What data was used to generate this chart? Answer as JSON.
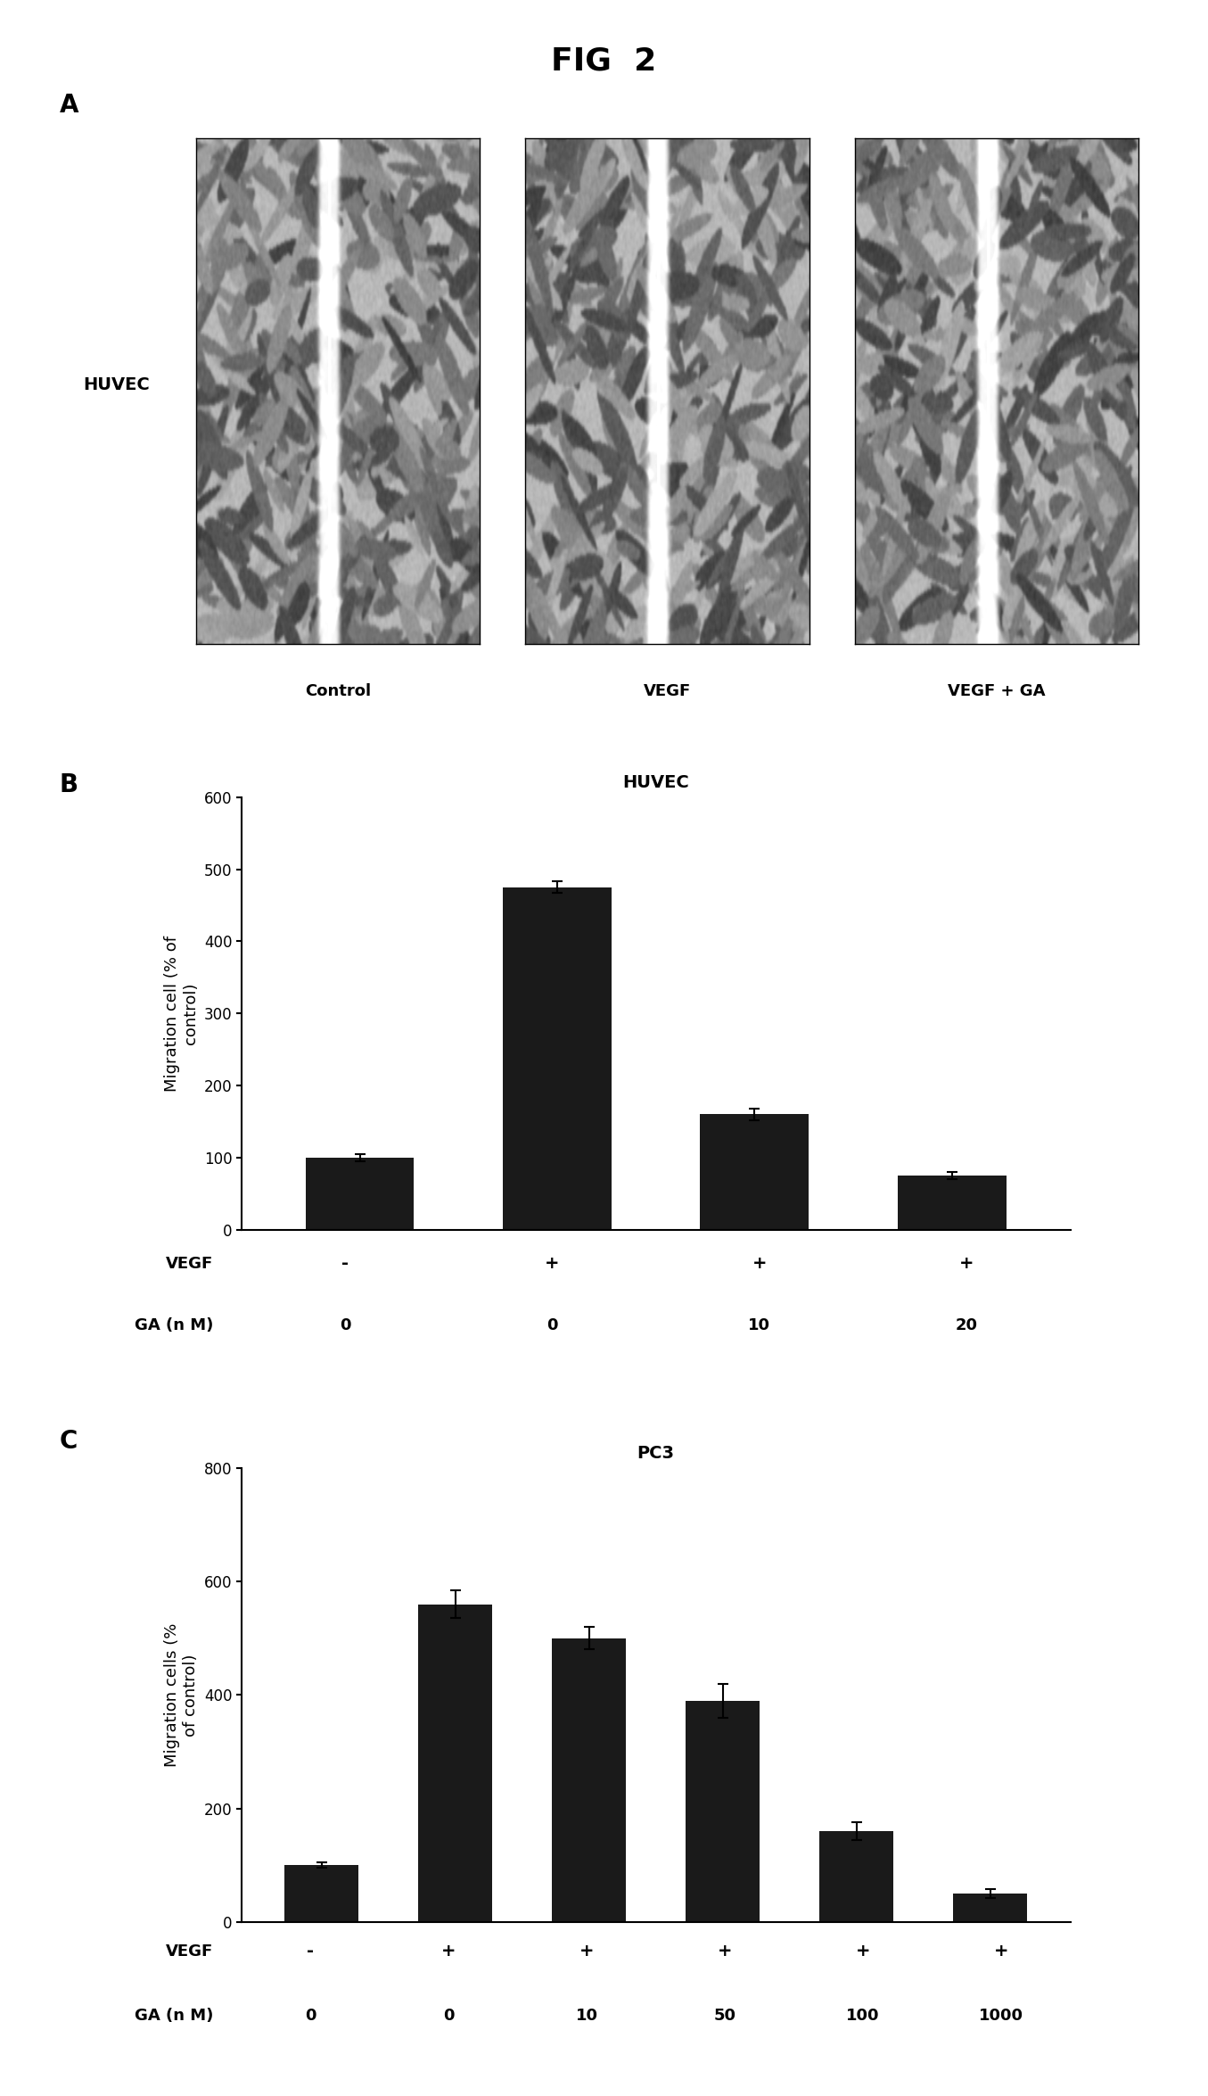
{
  "title": "FIG  2",
  "panel_a_label": "A",
  "panel_b_label": "B",
  "panel_c_label": "C",
  "huvec_label": "HUVEC",
  "image_labels": [
    "Control",
    "VEGF",
    "VEGF + GA"
  ],
  "panel_b": {
    "title": "HUVEC",
    "ylabel": "Migration cell (% of\ncontrol)",
    "ylim": [
      0,
      600
    ],
    "yticks": [
      0,
      100,
      200,
      300,
      400,
      500,
      600
    ],
    "values": [
      100,
      475,
      160,
      75
    ],
    "errors": [
      5,
      8,
      8,
      5
    ],
    "bar_color": "#1a1a1a",
    "vegf_labels": [
      "-",
      "+",
      "+",
      "+"
    ],
    "ga_labels": [
      "0",
      "0",
      "10",
      "20"
    ],
    "vegf_row_label": "VEGF",
    "ga_row_label": "GA (n M)"
  },
  "panel_c": {
    "title": "PC3",
    "ylabel": "Migration cells (%\nof control)",
    "ylim": [
      0,
      800
    ],
    "yticks": [
      0,
      200,
      400,
      600,
      800
    ],
    "values": [
      100,
      560,
      500,
      390,
      160,
      50
    ],
    "errors": [
      5,
      25,
      20,
      30,
      15,
      8
    ],
    "bar_color": "#1a1a1a",
    "vegf_labels": [
      "-",
      "+",
      "+",
      "+",
      "+",
      "+"
    ],
    "ga_labels": [
      "0",
      "0",
      "10",
      "50",
      "100",
      "1000"
    ],
    "vegf_row_label": "VEGF",
    "ga_row_label": "GA (n M)"
  },
  "background_color": "#ffffff",
  "fontsize_title": 26,
  "fontsize_panel_label": 20,
  "fontsize_chart_title": 14,
  "fontsize_tick": 12,
  "fontsize_label": 13,
  "fontsize_axis_label": 13
}
